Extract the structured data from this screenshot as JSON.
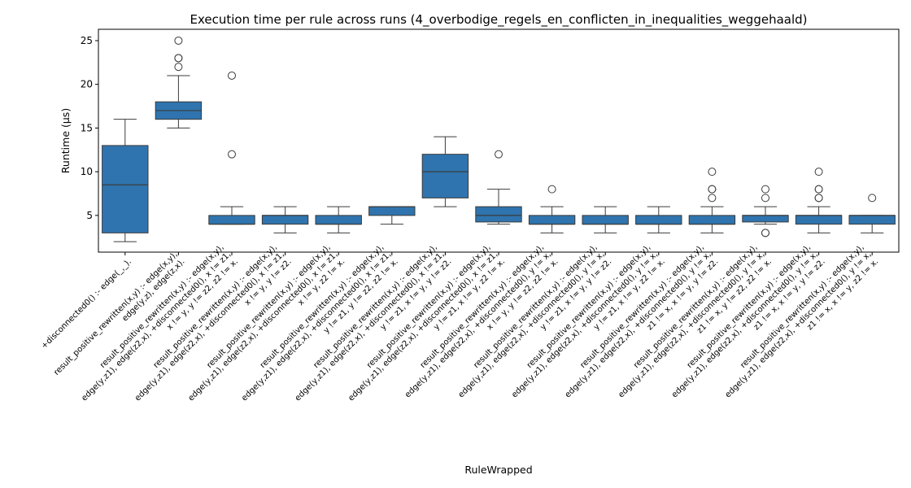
{
  "chart_data": {
    "type": "box",
    "title": "Execution time per rule across runs (4_overbodige_regels_en_conflicten_in_inequalities_weggehaald)",
    "xlabel": "RuleWrapped",
    "ylabel": "Runtime (µs)",
    "ylim": [
      0.8,
      26.3
    ],
    "yticks": [
      5,
      10,
      15,
      20,
      25
    ],
    "grid": false,
    "categories": [
      [
        "+disconnected0() :-     edge(_,_)."
      ],
      [
        "result_positive_rewritten(x,y) :-     edge(x,y),",
        "edge(y,z),     edge(z,x)."
      ],
      [
        "result_positive_rewritten(x,y) :-     edge(x,y),",
        "edge(y,z1),   edge(z2,x),   +disconnected0(),   x != z1,",
        "x != y,   y != z2,   z2 != x."
      ],
      [
        "result_positive_rewritten(x,y) :-     edge(x,y),",
        "edge(y,z1),   edge(z2,x),   +disconnected0(),   x != z1,",
        "x != y,   y != z2."
      ],
      [
        "result_positive_rewritten(x,y) :-     edge(x,y),",
        "edge(y,z1),   edge(z2,x),   +disconnected0(),   x != z1,",
        "x != y,   z2 != x."
      ],
      [
        "result_positive_rewritten(x,y) :-     edge(x,y),",
        "edge(y,z1),   edge(z2,x),   +disconnected0(),   x != z1,",
        "y != z1,   y != z2,   z2 != x."
      ],
      [
        "result_positive_rewritten(x,y) :-     edge(x,y),",
        "edge(y,z1),   edge(z2,x),   +disconnected0(),   x != z1,",
        "y != z1,   x != y,   y != z2."
      ],
      [
        "result_positive_rewritten(x,y) :-     edge(x,y),",
        "edge(y,z1),   edge(z2,x),   +disconnected0(),   x != z1,",
        "y != z1,   x != y,   z2 != x."
      ],
      [
        "result_positive_rewritten(x,y) :-     edge(x,y),",
        "edge(y,z1),   edge(z2,x),   +disconnected0(),   y != x,",
        "x != y,   y != z2,   z2 != x."
      ],
      [
        "result_positive_rewritten(x,y) :-     edge(x,y),",
        "edge(y,z1),   edge(z2,x),   +disconnected0(),   y != x,",
        "y != z1,   x != y,   y != z2."
      ],
      [
        "result_positive_rewritten(x,y) :-     edge(x,y),",
        "edge(y,z1),   edge(z2,x),   +disconnected0(),   y != x,",
        "y != z1,   x != y,   z2 != x."
      ],
      [
        "result_positive_rewritten(x,y) :-     edge(x,y),",
        "edge(y,z1),   edge(z2,x),   +disconnected0(),   y != x,",
        "z1 != x,   x != y,   y != z2."
      ],
      [
        "result_positive_rewritten(x,y) :-     edge(x,y),",
        "edge(y,z1),   edge(z2,x),   +disconnected0(),   y != x,",
        "z1 != x,   y != z2,   z2 != x."
      ],
      [
        "result_positive_rewritten(x,y) :-     edge(x,y),",
        "edge(y,z1),   edge(z2,x),   +disconnected0(),   y != x,",
        "z1 != x,   x != y,   y != z2."
      ],
      [
        "result_positive_rewritten(x,y) :-     edge(x,y),",
        "edge(y,z1),   edge(z2,x),   +disconnected0(),   y != x,",
        "z1 != x,   x != y,   z2 != x."
      ]
    ],
    "boxes": [
      {
        "whislo": 2,
        "q1": 3,
        "med": 8.5,
        "q3": 13,
        "whishi": 16,
        "fliers": []
      },
      {
        "whislo": 15,
        "q1": 16,
        "med": 17,
        "q3": 18,
        "whishi": 21,
        "fliers": [
          22,
          23,
          23,
          25
        ]
      },
      {
        "whislo": 4,
        "q1": 4,
        "med": 4,
        "q3": 5,
        "whishi": 6,
        "fliers": [
          12,
          21
        ]
      },
      {
        "whislo": 3,
        "q1": 4,
        "med": 5,
        "q3": 5,
        "whishi": 6,
        "fliers": []
      },
      {
        "whislo": 3,
        "q1": 4,
        "med": 4,
        "q3": 5,
        "whishi": 6,
        "fliers": []
      },
      {
        "whislo": 4,
        "q1": 5,
        "med": 6,
        "q3": 6,
        "whishi": 6,
        "fliers": []
      },
      {
        "whislo": 6,
        "q1": 7,
        "med": 10,
        "q3": 12,
        "whishi": 14,
        "fliers": []
      },
      {
        "whislo": 4,
        "q1": 4.25,
        "med": 5,
        "q3": 6,
        "whishi": 8,
        "fliers": [
          12
        ]
      },
      {
        "whislo": 3,
        "q1": 4,
        "med": 4,
        "q3": 5,
        "whishi": 6,
        "fliers": [
          8
        ]
      },
      {
        "whislo": 3,
        "q1": 4,
        "med": 4,
        "q3": 5,
        "whishi": 6,
        "fliers": []
      },
      {
        "whislo": 3,
        "q1": 4,
        "med": 4,
        "q3": 5,
        "whishi": 6,
        "fliers": []
      },
      {
        "whislo": 3,
        "q1": 4,
        "med": 4,
        "q3": 5,
        "whishi": 6,
        "fliers": [
          7,
          8,
          8,
          10
        ]
      },
      {
        "whislo": 4,
        "q1": 4.25,
        "med": 5,
        "q3": 5,
        "whishi": 6,
        "fliers": [
          3,
          3,
          7,
          8
        ]
      },
      {
        "whislo": 3,
        "q1": 4,
        "med": 5,
        "q3": 5,
        "whishi": 6,
        "fliers": [
          7,
          7,
          8,
          8,
          10
        ]
      },
      {
        "whislo": 3,
        "q1": 4,
        "med": 5,
        "q3": 5,
        "whishi": 5,
        "fliers": [
          7
        ]
      }
    ],
    "colors": {
      "box": "#2f74ae",
      "edge": "#3b3b3b"
    }
  }
}
